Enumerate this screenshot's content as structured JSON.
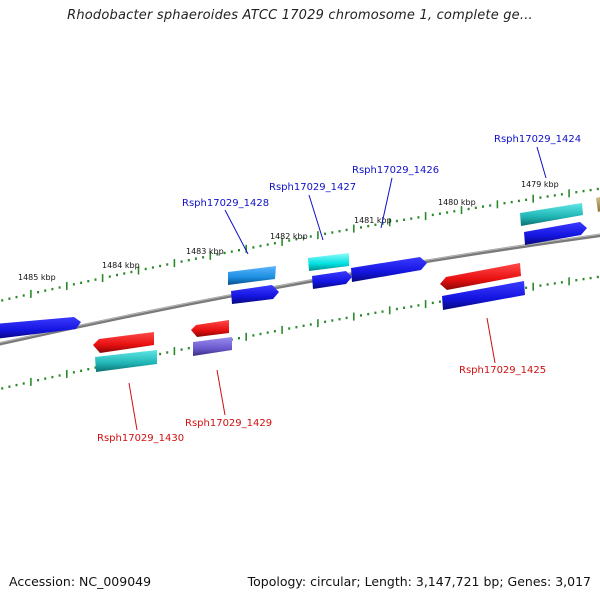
{
  "title": "Rhodobacter sphaeroides ATCC 17029 chromosome 1, complete ge...",
  "footer": {
    "accession": "Accession: NC_009049",
    "topology": "Topology: circular; Length: 3,147,721 bp; Genes: 3,017"
  },
  "kbp_labels": [
    "1485 kbp",
    "1484 kbp",
    "1483 kbp",
    "1482 kbp",
    "1481 kbp",
    "1480 kbp",
    "1479 kbp"
  ],
  "gene_labels": {
    "top": [
      "Rsph17029_1428",
      "Rsph17029_1427",
      "Rsph17029_1426",
      "Rsph17029_1424"
    ],
    "bottom": [
      "Rsph17029_1430",
      "Rsph17029_1429",
      "Rsph17029_1425"
    ]
  },
  "colors": {
    "forward_label": "#1010c8",
    "reverse_label": "#d01010",
    "backbone": "#7a7a7a",
    "ticks": "#2a8a2a",
    "blue": "#1414e0",
    "red": "#e81010",
    "teal": "#20b4b4",
    "cyan": "#00e0e0",
    "sky": "#1c8ee0",
    "purple": "#6a5acd",
    "olive": "#b09a50"
  }
}
